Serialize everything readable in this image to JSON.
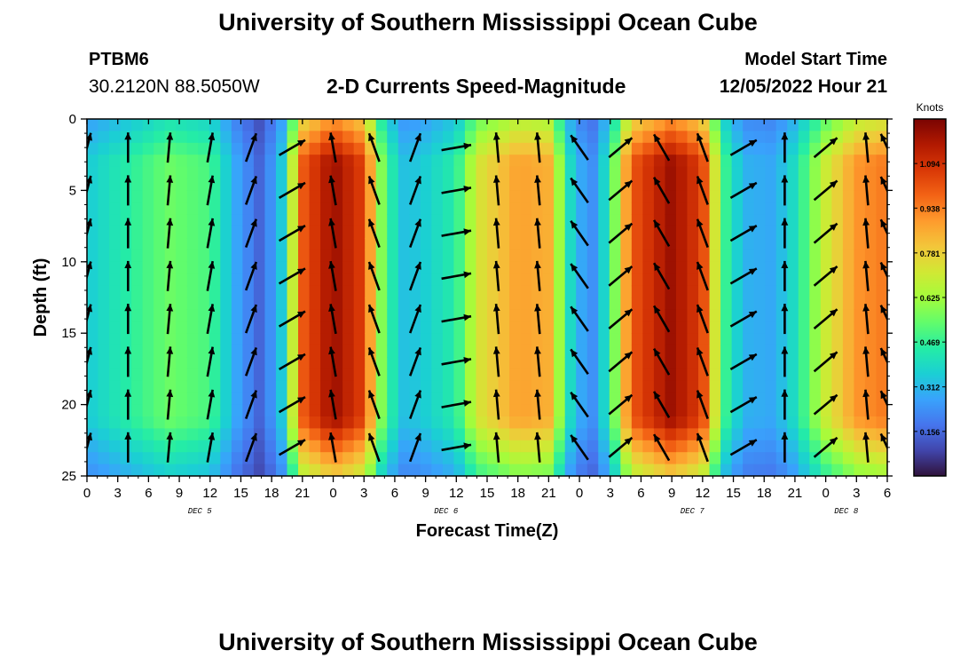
{
  "header": {
    "title": "University of Southern Mississippi Ocean Cube",
    "station_id": "PTBM6",
    "station_coords": "30.2120N  88.5050W",
    "plot_title": "2-D Currents Speed-Magnitude",
    "model_label": "Model Start Time",
    "model_time": "12/05/2022 Hour 21"
  },
  "footer": {
    "title": "University of Southern Mississippi Ocean Cube"
  },
  "chart_data": {
    "type": "heatmap",
    "title": "2-D Currents Speed-Magnitude",
    "xlabel": "Forecast Time(Z)",
    "ylabel": "Depth (ft)",
    "x_range_hours": [
      0,
      78
    ],
    "x_tick_labels": [
      "0",
      "3",
      "6",
      "9",
      "12",
      "15",
      "18",
      "21",
      "0",
      "3",
      "6",
      "9",
      "12",
      "15",
      "18",
      "21",
      "0",
      "3",
      "6",
      "9",
      "12",
      "15",
      "18",
      "21",
      "0",
      "3",
      "6"
    ],
    "day_labels": [
      {
        "label": "DEC 5",
        "hour": 11
      },
      {
        "label": "DEC 6",
        "hour": 35
      },
      {
        "label": "DEC 7",
        "hour": 59
      },
      {
        "label": "DEC 8",
        "hour": 74
      }
    ],
    "y_range": [
      0,
      25
    ],
    "y_ticks": [
      0,
      5,
      10,
      15,
      20,
      25
    ],
    "y_tick_labels": [
      "0",
      "5",
      "10",
      "15",
      "20",
      "25"
    ],
    "colorbar": {
      "title": "Knots",
      "range": [
        0,
        1.25
      ],
      "tick_values": [
        1.094,
        0.938,
        0.781,
        0.625,
        0.469,
        0.312,
        0.156
      ],
      "tick_labels": [
        "1.094",
        "0.938",
        "0.781",
        "0.625",
        "0.469",
        "0.312",
        "0.156"
      ],
      "colors": [
        "#30123b",
        "#4145ab",
        "#4675ed",
        "#39a2fc",
        "#1bcfd4",
        "#24eca6",
        "#61fc6c",
        "#a4fc3b",
        "#d1e834",
        "#f3c63a",
        "#fe9b2d",
        "#f36315",
        "#d93806",
        "#b11901",
        "#7a0402"
      ]
    },
    "speed_profile_knots": [
      {
        "hour": 0,
        "value": 0.35
      },
      {
        "hour": 4,
        "value": 0.45
      },
      {
        "hour": 8,
        "value": 0.55
      },
      {
        "hour": 12,
        "value": 0.5
      },
      {
        "hour": 14.5,
        "value": 0.28
      },
      {
        "hour": 17,
        "value": 0.14
      },
      {
        "hour": 19,
        "value": 0.35
      },
      {
        "hour": 21,
        "value": 1.0
      },
      {
        "hour": 24,
        "value": 1.2
      },
      {
        "hour": 27,
        "value": 1.05
      },
      {
        "hour": 29,
        "value": 0.5
      },
      {
        "hour": 31,
        "value": 0.32
      },
      {
        "hour": 33,
        "value": 0.36
      },
      {
        "hour": 36,
        "value": 0.45
      },
      {
        "hour": 38,
        "value": 0.72
      },
      {
        "hour": 42,
        "value": 0.88
      },
      {
        "hour": 45,
        "value": 0.85
      },
      {
        "hour": 47,
        "value": 0.4
      },
      {
        "hour": 49,
        "value": 0.2
      },
      {
        "hour": 51,
        "value": 0.45
      },
      {
        "hour": 53,
        "value": 1.0
      },
      {
        "hour": 57,
        "value": 1.2
      },
      {
        "hour": 60,
        "value": 1.05
      },
      {
        "hour": 62,
        "value": 0.5
      },
      {
        "hour": 64,
        "value": 0.3
      },
      {
        "hour": 67,
        "value": 0.28
      },
      {
        "hour": 69,
        "value": 0.4
      },
      {
        "hour": 72,
        "value": 0.7
      },
      {
        "hour": 75,
        "value": 0.9
      },
      {
        "hour": 78,
        "value": 0.95
      }
    ],
    "vector_hours": [
      0,
      4,
      8,
      12,
      16,
      20,
      24,
      28,
      32,
      36,
      40,
      44,
      48,
      52,
      56,
      60,
      64,
      68,
      72,
      76,
      78
    ],
    "vector_directions_deg": [
      15,
      0,
      5,
      10,
      20,
      60,
      -10,
      -20,
      20,
      80,
      -5,
      -5,
      -35,
      50,
      -30,
      -20,
      60,
      0,
      50,
      -5,
      -25
    ],
    "vector_depths_ft": [
      2,
      5,
      8,
      11,
      14,
      17,
      20,
      23
    ]
  }
}
